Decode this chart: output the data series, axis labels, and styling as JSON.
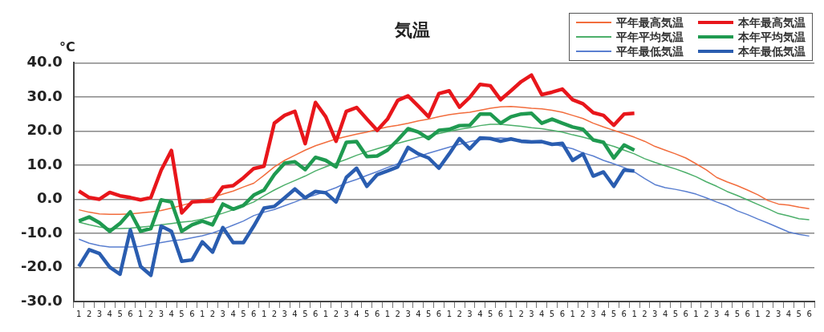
{
  "chart_data": {
    "type": "line",
    "title": "気温",
    "ylabel": "°C",
    "categories": [
      "1",
      "2",
      "3",
      "4",
      "5",
      "6",
      "1",
      "2",
      "3",
      "4",
      "5",
      "6",
      "1",
      "2",
      "3",
      "4",
      "5",
      "6",
      "1",
      "2",
      "3",
      "4",
      "5",
      "6",
      "1",
      "2",
      "3",
      "4",
      "5",
      "6",
      "1",
      "2",
      "3",
      "4",
      "5",
      "6",
      "1",
      "2",
      "3",
      "4",
      "5",
      "6",
      "1",
      "2",
      "3",
      "4",
      "5",
      "6",
      "1",
      "2",
      "3",
      "4",
      "5",
      "6",
      "1",
      "2",
      "3",
      "4",
      "5",
      "6",
      "1",
      "2",
      "3",
      "4",
      "5",
      "6",
      "1",
      "2",
      "3",
      "4",
      "5",
      "6"
    ],
    "series": [
      {
        "name": "平年最高気温",
        "color": "#f26d3d",
        "values": [
          -3.1,
          -3.8,
          -4.3,
          -4.4,
          -4.4,
          -4.3,
          -4,
          -3.7,
          -3.3,
          -2.6,
          -1.8,
          -1,
          -0.2,
          0.5,
          1.5,
          2.4,
          3.6,
          4.7,
          7,
          9.5,
          11.4,
          12.9,
          14.4,
          15.7,
          16.7,
          17.7,
          18.4,
          19.1,
          19.7,
          20.5,
          21.2,
          21.7,
          22.3,
          23,
          23.5,
          24.2,
          24.8,
          25.2,
          25.5,
          26.1,
          26.7,
          27.1,
          27.2,
          27,
          26.7,
          26.5,
          26.1,
          25.5,
          24.6,
          23.7,
          22.3,
          21.2,
          20.2,
          19.2,
          18.2,
          17,
          15.5,
          14.4,
          13.3,
          12.1,
          10.4,
          8.6,
          6.4,
          5.1,
          4,
          2.7,
          1.3,
          -0.4,
          -1.4,
          -1.7,
          -2.3,
          -2.8
        ]
      },
      {
        "name": "本年最高気温",
        "color": "#e8161b",
        "values": [
          2.4,
          0.5,
          0,
          2,
          1,
          0.5,
          -0.2,
          0.5,
          8.5,
          14.3,
          -4,
          -0.8,
          -0.6,
          -0.6,
          3.6,
          4,
          6.3,
          9,
          9.7,
          22.3,
          24.6,
          25.8,
          16.3,
          28.4,
          24.2,
          17,
          25.8,
          26.9,
          23.5,
          20.2,
          23.5,
          29,
          30.3,
          27.3,
          24.2,
          31,
          31.8,
          27,
          29.9,
          33.7,
          33.3,
          29.2,
          31.8,
          34.5,
          36.4,
          30.7,
          31.4,
          32.3,
          29.2,
          28,
          25.4,
          24.6,
          21.7,
          25,
          25.2,
          null,
          null,
          null,
          null,
          null,
          null,
          null,
          null,
          null,
          null,
          null,
          null,
          null,
          null,
          null,
          null,
          null
        ]
      },
      {
        "name": "平年平均気温",
        "color": "#4caf6a",
        "values": [
          -6.7,
          -7.5,
          -8.1,
          -8.6,
          -8.6,
          -8.5,
          -8.2,
          -7.9,
          -7.5,
          -7.1,
          -6.7,
          -6.4,
          -5.8,
          -5,
          -4.1,
          -3.1,
          -2,
          -0.8,
          1,
          2.7,
          4.2,
          5.5,
          6.8,
          8.3,
          9.5,
          10.6,
          11.7,
          12.9,
          13.9,
          14.8,
          15.7,
          16.4,
          17.2,
          18,
          18.6,
          19.3,
          19.9,
          20.5,
          21,
          21.6,
          22,
          22,
          21.7,
          21.4,
          21,
          20.7,
          20.2,
          19.7,
          18.9,
          18.2,
          17.4,
          16.4,
          15.5,
          14.4,
          13.3,
          11.9,
          10.8,
          9.8,
          8.9,
          7.8,
          6.6,
          5.1,
          3.8,
          2.3,
          1.1,
          -0.2,
          -1.5,
          -2.8,
          -4.2,
          -4.9,
          -5.7,
          -6
        ]
      },
      {
        "name": "本年平均気温",
        "color": "#1f9a50",
        "values": [
          -6.4,
          -5.2,
          -6.9,
          -9.4,
          -7.1,
          -3.7,
          -9.4,
          -8.6,
          -0.2,
          -0.8,
          -9.4,
          -7.5,
          -6.4,
          -7.5,
          -1.4,
          -2.9,
          -1.8,
          1.2,
          2.7,
          7.2,
          10.6,
          11,
          8.7,
          12.3,
          11.4,
          9.5,
          16.7,
          16.9,
          12.5,
          12.7,
          14.4,
          17.4,
          20.7,
          19.7,
          17.8,
          20.2,
          20.5,
          21.6,
          21.7,
          25,
          25,
          22.3,
          24.2,
          25,
          25.2,
          22.3,
          23.5,
          22.3,
          21.2,
          20.5,
          17.4,
          16.7,
          12.1,
          15.9,
          14.4,
          null,
          null,
          null,
          null,
          null,
          null,
          null,
          null,
          null,
          null,
          null,
          null,
          null,
          null,
          null,
          null,
          null
        ]
      },
      {
        "name": "平年最低気温",
        "color": "#5a7fd0",
        "values": [
          -11.7,
          -12.9,
          -13.6,
          -14,
          -14,
          -14,
          -13.8,
          -13.2,
          -12.7,
          -12.2,
          -11.9,
          -11.3,
          -10.7,
          -9.9,
          -8.8,
          -7.6,
          -6.4,
          -4.8,
          -3.8,
          -3,
          -1.9,
          -0.8,
          0.4,
          1.3,
          2.3,
          3.4,
          4.8,
          5.8,
          7,
          8.1,
          9.3,
          10.4,
          11.5,
          12.5,
          13.5,
          14.4,
          15.3,
          16.1,
          16.9,
          17.4,
          17.8,
          18,
          17.8,
          17.4,
          17.1,
          16.9,
          16.3,
          15.5,
          14.8,
          13.6,
          12.7,
          11.4,
          10.4,
          9.3,
          8,
          6.1,
          4.3,
          3.4,
          2.9,
          2.3,
          1.5,
          0.4,
          -0.8,
          -1.9,
          -3.4,
          -4.5,
          -5.8,
          -7,
          -8.3,
          -9.6,
          -10.3,
          -10.8
        ]
      },
      {
        "name": "本年最低気温",
        "color": "#2a5db0",
        "values": [
          -19.7,
          -14.8,
          -15.9,
          -19.9,
          -22,
          -9,
          -19.7,
          -22.3,
          -7.9,
          -9.4,
          -18.2,
          -17.8,
          -12.5,
          -15.5,
          -8.3,
          -12.7,
          -12.7,
          -7.9,
          -2.6,
          -2.1,
          0.4,
          3,
          0.4,
          2.3,
          1.9,
          -0.8,
          6.4,
          9.1,
          3.8,
          7.2,
          8.3,
          9.5,
          15.2,
          13.3,
          12.1,
          9.1,
          13.3,
          17.8,
          14.8,
          18,
          17.8,
          17,
          17.7,
          17,
          16.8,
          16.9,
          16.1,
          16.4,
          11.4,
          13.3,
          6.8,
          8,
          3.8,
          8.6,
          8.3,
          null,
          null,
          null,
          null,
          null,
          null,
          null,
          null,
          null,
          null,
          null,
          null,
          null,
          null,
          null,
          null,
          null
        ]
      }
    ],
    "ylim": [
      -30,
      40
    ],
    "yticks": [
      {
        "value": -30,
        "label": "-30.0"
      },
      {
        "value": -20,
        "label": "-20.0"
      },
      {
        "value": -10,
        "label": "-10.0"
      },
      {
        "value": 0,
        "label": "0.0"
      },
      {
        "value": 10,
        "label": "10.0"
      },
      {
        "value": 20,
        "label": "20.0"
      },
      {
        "value": 30,
        "label": "30.0"
      },
      {
        "value": 40,
        "label": "40.0"
      }
    ],
    "grid": "y",
    "legend": "top right",
    "marker": "none",
    "line_style": "solid"
  }
}
